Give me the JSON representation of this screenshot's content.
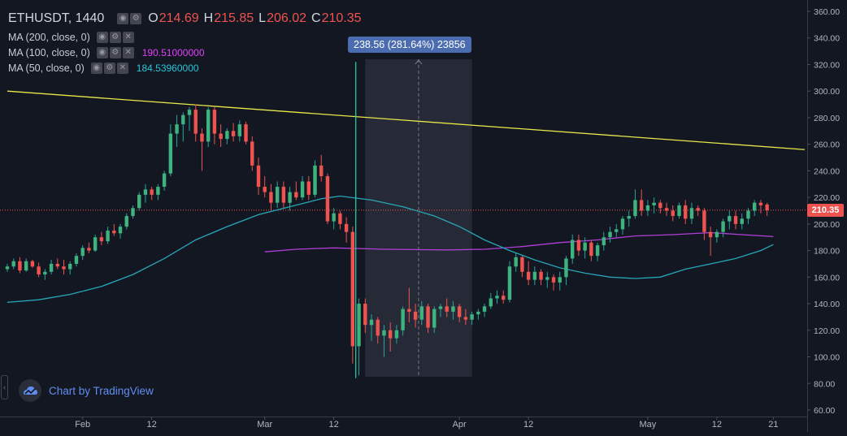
{
  "legend": {
    "symbol": "ETHUSDT, 1440",
    "ohlc": [
      {
        "k": "O",
        "v": "214.69"
      },
      {
        "k": "H",
        "v": "215.85"
      },
      {
        "k": "L",
        "v": "206.02"
      },
      {
        "k": "C",
        "v": "210.35"
      }
    ],
    "ma200": {
      "label": "MA (200, close, 0)",
      "value": "",
      "color": "#e040fb"
    },
    "ma100": {
      "label": "MA (100, close, 0)",
      "value": "190.51000000",
      "color": "#e040fb"
    },
    "ma50": {
      "label": "MA (50, close, 0)",
      "value": "184.53960000",
      "color": "#26c6da"
    }
  },
  "ruler": {
    "label": "238.56 (281.64%) 23856"
  },
  "last_price": "210.35",
  "branding": "Chart by TradingView",
  "colors": {
    "background": "#131722",
    "up": "#26a69a",
    "up_fill": "#4caf50",
    "down": "#ef5350",
    "ma50": "#26a6b8",
    "ma100": "#b03fd6",
    "trendline": "#e8e84a",
    "vertical_marker": "#26d4b0",
    "ruler_fill": "#2a2e39",
    "last_price_line": "#ef5350",
    "axis_text": "#b2b5be"
  },
  "chart_data": {
    "type": "candlestick",
    "y_ticks": [
      "360.00",
      "340.00",
      "320.00",
      "300.00",
      "280.00",
      "260.00",
      "240.00",
      "220.00",
      "200.00",
      "180.00",
      "160.00",
      "140.00",
      "120.00",
      "100.00",
      "80.00",
      "60.00"
    ],
    "ylim": [
      60,
      360
    ],
    "x_labels": [
      {
        "label": "Feb",
        "day": 32
      },
      {
        "label": "12",
        "day": 43
      },
      {
        "label": "Mar",
        "day": 61
      },
      {
        "label": "12",
        "day": 72
      },
      {
        "label": "Apr",
        "day": 92
      },
      {
        "label": "12",
        "day": 103
      },
      {
        "label": "May",
        "day": 122
      },
      {
        "label": "12",
        "day": 133
      },
      {
        "label": "21",
        "day": 142
      }
    ],
    "x_range_days": [
      20,
      147
    ],
    "candles": [
      {
        "day": 20,
        "o": 166,
        "h": 170,
        "l": 164,
        "c": 168
      },
      {
        "day": 21,
        "o": 168,
        "h": 174,
        "l": 166,
        "c": 172
      },
      {
        "day": 22,
        "o": 172,
        "h": 175,
        "l": 163,
        "c": 165
      },
      {
        "day": 23,
        "o": 165,
        "h": 174,
        "l": 164,
        "c": 172
      },
      {
        "day": 24,
        "o": 172,
        "h": 173,
        "l": 167,
        "c": 168
      },
      {
        "day": 25,
        "o": 168,
        "h": 171,
        "l": 160,
        "c": 162
      },
      {
        "day": 26,
        "o": 162,
        "h": 166,
        "l": 158,
        "c": 164
      },
      {
        "day": 27,
        "o": 164,
        "h": 173,
        "l": 162,
        "c": 170
      },
      {
        "day": 28,
        "o": 170,
        "h": 174,
        "l": 166,
        "c": 168
      },
      {
        "day": 29,
        "o": 168,
        "h": 173,
        "l": 162,
        "c": 166
      },
      {
        "day": 30,
        "o": 166,
        "h": 172,
        "l": 162,
        "c": 170
      },
      {
        "day": 31,
        "o": 170,
        "h": 178,
        "l": 168,
        "c": 176
      },
      {
        "day": 32,
        "o": 176,
        "h": 184,
        "l": 173,
        "c": 182
      },
      {
        "day": 33,
        "o": 182,
        "h": 186,
        "l": 178,
        "c": 180
      },
      {
        "day": 34,
        "o": 180,
        "h": 192,
        "l": 179,
        "c": 190
      },
      {
        "day": 35,
        "o": 190,
        "h": 194,
        "l": 184,
        "c": 187
      },
      {
        "day": 36,
        "o": 187,
        "h": 198,
        "l": 185,
        "c": 195
      },
      {
        "day": 37,
        "o": 195,
        "h": 200,
        "l": 191,
        "c": 193
      },
      {
        "day": 38,
        "o": 193,
        "h": 200,
        "l": 189,
        "c": 198
      },
      {
        "day": 39,
        "o": 198,
        "h": 208,
        "l": 196,
        "c": 206
      },
      {
        "day": 40,
        "o": 206,
        "h": 214,
        "l": 204,
        "c": 212
      },
      {
        "day": 41,
        "o": 212,
        "h": 224,
        "l": 210,
        "c": 222
      },
      {
        "day": 42,
        "o": 222,
        "h": 230,
        "l": 216,
        "c": 226
      },
      {
        "day": 43,
        "o": 226,
        "h": 228,
        "l": 218,
        "c": 222
      },
      {
        "day": 44,
        "o": 222,
        "h": 230,
        "l": 218,
        "c": 228
      },
      {
        "day": 45,
        "o": 228,
        "h": 240,
        "l": 225,
        "c": 238
      },
      {
        "day": 46,
        "o": 238,
        "h": 275,
        "l": 236,
        "c": 268
      },
      {
        "day": 47,
        "o": 268,
        "h": 282,
        "l": 258,
        "c": 275
      },
      {
        "day": 48,
        "o": 275,
        "h": 284,
        "l": 262,
        "c": 282
      },
      {
        "day": 49,
        "o": 282,
        "h": 288,
        "l": 270,
        "c": 286
      },
      {
        "day": 50,
        "o": 286,
        "h": 290,
        "l": 262,
        "c": 268
      },
      {
        "day": 51,
        "o": 268,
        "h": 272,
        "l": 240,
        "c": 262
      },
      {
        "day": 52,
        "o": 262,
        "h": 288,
        "l": 258,
        "c": 286
      },
      {
        "day": 53,
        "o": 286,
        "h": 288,
        "l": 260,
        "c": 268
      },
      {
        "day": 54,
        "o": 268,
        "h": 275,
        "l": 258,
        "c": 264
      },
      {
        "day": 55,
        "o": 264,
        "h": 272,
        "l": 260,
        "c": 270
      },
      {
        "day": 56,
        "o": 270,
        "h": 276,
        "l": 262,
        "c": 266
      },
      {
        "day": 57,
        "o": 266,
        "h": 278,
        "l": 262,
        "c": 275
      },
      {
        "day": 58,
        "o": 275,
        "h": 277,
        "l": 260,
        "c": 262
      },
      {
        "day": 59,
        "o": 262,
        "h": 266,
        "l": 240,
        "c": 244
      },
      {
        "day": 60,
        "o": 244,
        "h": 250,
        "l": 222,
        "c": 228
      },
      {
        "day": 61,
        "o": 228,
        "h": 236,
        "l": 220,
        "c": 224
      },
      {
        "day": 62,
        "o": 224,
        "h": 230,
        "l": 210,
        "c": 216
      },
      {
        "day": 63,
        "o": 216,
        "h": 232,
        "l": 212,
        "c": 228
      },
      {
        "day": 64,
        "o": 228,
        "h": 232,
        "l": 212,
        "c": 216
      },
      {
        "day": 65,
        "o": 216,
        "h": 228,
        "l": 210,
        "c": 224
      },
      {
        "day": 66,
        "o": 224,
        "h": 232,
        "l": 218,
        "c": 220
      },
      {
        "day": 67,
        "o": 220,
        "h": 236,
        "l": 218,
        "c": 232
      },
      {
        "day": 68,
        "o": 232,
        "h": 236,
        "l": 218,
        "c": 222
      },
      {
        "day": 69,
        "o": 222,
        "h": 248,
        "l": 220,
        "c": 244
      },
      {
        "day": 70,
        "o": 244,
        "h": 252,
        "l": 232,
        "c": 236
      },
      {
        "day": 71,
        "o": 236,
        "h": 238,
        "l": 200,
        "c": 202
      },
      {
        "day": 72,
        "o": 202,
        "h": 212,
        "l": 196,
        "c": 208
      },
      {
        "day": 73,
        "o": 208,
        "h": 210,
        "l": 196,
        "c": 200
      },
      {
        "day": 74,
        "o": 200,
        "h": 205,
        "l": 186,
        "c": 194
      },
      {
        "day": 75,
        "o": 194,
        "h": 198,
        "l": 95,
        "c": 108
      },
      {
        "day": 76,
        "o": 108,
        "h": 144,
        "l": 86,
        "c": 140
      },
      {
        "day": 77,
        "o": 140,
        "h": 144,
        "l": 118,
        "c": 124
      },
      {
        "day": 78,
        "o": 124,
        "h": 132,
        "l": 112,
        "c": 128
      },
      {
        "day": 79,
        "o": 128,
        "h": 130,
        "l": 110,
        "c": 116
      },
      {
        "day": 80,
        "o": 116,
        "h": 124,
        "l": 100,
        "c": 120
      },
      {
        "day": 81,
        "o": 120,
        "h": 126,
        "l": 104,
        "c": 114
      },
      {
        "day": 82,
        "o": 114,
        "h": 124,
        "l": 110,
        "c": 120
      },
      {
        "day": 83,
        "o": 120,
        "h": 138,
        "l": 116,
        "c": 136
      },
      {
        "day": 84,
        "o": 136,
        "h": 152,
        "l": 126,
        "c": 134
      },
      {
        "day": 85,
        "o": 134,
        "h": 140,
        "l": 122,
        "c": 128
      },
      {
        "day": 86,
        "o": 128,
        "h": 142,
        "l": 124,
        "c": 138
      },
      {
        "day": 87,
        "o": 138,
        "h": 140,
        "l": 118,
        "c": 122
      },
      {
        "day": 88,
        "o": 122,
        "h": 138,
        "l": 118,
        "c": 136
      },
      {
        "day": 89,
        "o": 136,
        "h": 140,
        "l": 130,
        "c": 138
      },
      {
        "day": 90,
        "o": 138,
        "h": 144,
        "l": 130,
        "c": 134
      },
      {
        "day": 91,
        "o": 134,
        "h": 142,
        "l": 128,
        "c": 138
      },
      {
        "day": 92,
        "o": 138,
        "h": 140,
        "l": 126,
        "c": 130
      },
      {
        "day": 93,
        "o": 130,
        "h": 136,
        "l": 124,
        "c": 128
      },
      {
        "day": 94,
        "o": 128,
        "h": 134,
        "l": 124,
        "c": 132
      },
      {
        "day": 95,
        "o": 132,
        "h": 136,
        "l": 128,
        "c": 134
      },
      {
        "day": 96,
        "o": 134,
        "h": 140,
        "l": 130,
        "c": 138
      },
      {
        "day": 97,
        "o": 138,
        "h": 148,
        "l": 136,
        "c": 144
      },
      {
        "day": 98,
        "o": 144,
        "h": 150,
        "l": 140,
        "c": 146
      },
      {
        "day": 99,
        "o": 146,
        "h": 150,
        "l": 140,
        "c": 143
      },
      {
        "day": 100,
        "o": 143,
        "h": 172,
        "l": 141,
        "c": 168
      },
      {
        "day": 101,
        "o": 168,
        "h": 178,
        "l": 164,
        "c": 175
      },
      {
        "day": 102,
        "o": 175,
        "h": 176,
        "l": 160,
        "c": 164
      },
      {
        "day": 103,
        "o": 164,
        "h": 172,
        "l": 154,
        "c": 158
      },
      {
        "day": 104,
        "o": 158,
        "h": 168,
        "l": 154,
        "c": 164
      },
      {
        "day": 105,
        "o": 164,
        "h": 166,
        "l": 154,
        "c": 158
      },
      {
        "day": 106,
        "o": 158,
        "h": 164,
        "l": 152,
        "c": 160
      },
      {
        "day": 107,
        "o": 160,
        "h": 162,
        "l": 150,
        "c": 156
      },
      {
        "day": 108,
        "o": 156,
        "h": 164,
        "l": 150,
        "c": 160
      },
      {
        "day": 109,
        "o": 160,
        "h": 176,
        "l": 154,
        "c": 174
      },
      {
        "day": 110,
        "o": 174,
        "h": 192,
        "l": 170,
        "c": 188
      },
      {
        "day": 111,
        "o": 188,
        "h": 192,
        "l": 176,
        "c": 180
      },
      {
        "day": 112,
        "o": 180,
        "h": 190,
        "l": 174,
        "c": 186
      },
      {
        "day": 113,
        "o": 186,
        "h": 188,
        "l": 172,
        "c": 176
      },
      {
        "day": 114,
        "o": 176,
        "h": 186,
        "l": 172,
        "c": 184
      },
      {
        "day": 115,
        "o": 184,
        "h": 194,
        "l": 180,
        "c": 190
      },
      {
        "day": 116,
        "o": 190,
        "h": 198,
        "l": 186,
        "c": 194
      },
      {
        "day": 117,
        "o": 194,
        "h": 200,
        "l": 190,
        "c": 196
      },
      {
        "day": 118,
        "o": 196,
        "h": 206,
        "l": 192,
        "c": 204
      },
      {
        "day": 119,
        "o": 204,
        "h": 210,
        "l": 198,
        "c": 206
      },
      {
        "day": 120,
        "o": 206,
        "h": 226,
        "l": 204,
        "c": 218
      },
      {
        "day": 121,
        "o": 218,
        "h": 226,
        "l": 206,
        "c": 210
      },
      {
        "day": 122,
        "o": 210,
        "h": 218,
        "l": 206,
        "c": 214
      },
      {
        "day": 123,
        "o": 214,
        "h": 220,
        "l": 208,
        "c": 216
      },
      {
        "day": 124,
        "o": 216,
        "h": 218,
        "l": 208,
        "c": 212
      },
      {
        "day": 125,
        "o": 212,
        "h": 216,
        "l": 206,
        "c": 210
      },
      {
        "day": 126,
        "o": 210,
        "h": 214,
        "l": 202,
        "c": 206
      },
      {
        "day": 127,
        "o": 206,
        "h": 216,
        "l": 204,
        "c": 214
      },
      {
        "day": 128,
        "o": 214,
        "h": 218,
        "l": 200,
        "c": 204
      },
      {
        "day": 129,
        "o": 204,
        "h": 216,
        "l": 200,
        "c": 212
      },
      {
        "day": 130,
        "o": 212,
        "h": 214,
        "l": 206,
        "c": 210
      },
      {
        "day": 131,
        "o": 210,
        "h": 212,
        "l": 188,
        "c": 194
      },
      {
        "day": 132,
        "o": 194,
        "h": 198,
        "l": 176,
        "c": 190
      },
      {
        "day": 133,
        "o": 190,
        "h": 196,
        "l": 186,
        "c": 194
      },
      {
        "day": 134,
        "o": 194,
        "h": 204,
        "l": 190,
        "c": 202
      },
      {
        "day": 135,
        "o": 202,
        "h": 210,
        "l": 196,
        "c": 206
      },
      {
        "day": 136,
        "o": 206,
        "h": 210,
        "l": 196,
        "c": 200
      },
      {
        "day": 137,
        "o": 200,
        "h": 208,
        "l": 196,
        "c": 204
      },
      {
        "day": 138,
        "o": 204,
        "h": 212,
        "l": 200,
        "c": 210
      },
      {
        "day": 139,
        "o": 210,
        "h": 218,
        "l": 206,
        "c": 216
      },
      {
        "day": 140,
        "o": 216,
        "h": 218,
        "l": 208,
        "c": 214
      },
      {
        "day": 141,
        "o": 214.69,
        "h": 215.85,
        "l": 206.02,
        "c": 210.35
      }
    ],
    "ma50": [
      {
        "day": 20,
        "v": 141
      },
      {
        "day": 25,
        "v": 143
      },
      {
        "day": 30,
        "v": 147
      },
      {
        "day": 35,
        "v": 153
      },
      {
        "day": 40,
        "v": 162
      },
      {
        "day": 45,
        "v": 174
      },
      {
        "day": 50,
        "v": 188
      },
      {
        "day": 55,
        "v": 198
      },
      {
        "day": 60,
        "v": 207
      },
      {
        "day": 65,
        "v": 213
      },
      {
        "day": 70,
        "v": 219
      },
      {
        "day": 73,
        "v": 221
      },
      {
        "day": 78,
        "v": 218
      },
      {
        "day": 83,
        "v": 213
      },
      {
        "day": 88,
        "v": 206
      },
      {
        "day": 92,
        "v": 198
      },
      {
        "day": 96,
        "v": 188
      },
      {
        "day": 100,
        "v": 180
      },
      {
        "day": 104,
        "v": 173
      },
      {
        "day": 108,
        "v": 167
      },
      {
        "day": 112,
        "v": 163
      },
      {
        "day": 116,
        "v": 160
      },
      {
        "day": 120,
        "v": 159
      },
      {
        "day": 124,
        "v": 160
      },
      {
        "day": 128,
        "v": 166
      },
      {
        "day": 132,
        "v": 170
      },
      {
        "day": 136,
        "v": 174
      },
      {
        "day": 140,
        "v": 180
      },
      {
        "day": 142,
        "v": 184.54
      }
    ],
    "ma100": [
      {
        "day": 61,
        "v": 179
      },
      {
        "day": 66,
        "v": 181
      },
      {
        "day": 72,
        "v": 182
      },
      {
        "day": 80,
        "v": 181
      },
      {
        "day": 90,
        "v": 180.5
      },
      {
        "day": 96,
        "v": 181
      },
      {
        "day": 102,
        "v": 183
      },
      {
        "day": 108,
        "v": 186
      },
      {
        "day": 114,
        "v": 188
      },
      {
        "day": 120,
        "v": 191
      },
      {
        "day": 126,
        "v": 192
      },
      {
        "day": 132,
        "v": 193.5
      },
      {
        "day": 137,
        "v": 192
      },
      {
        "day": 142,
        "v": 190.51
      }
    ],
    "trendline": [
      {
        "day": 20,
        "v": 300
      },
      {
        "day": 147,
        "v": 256
      }
    ],
    "vertical_marker_day": 75.5,
    "ruler": {
      "day_start": 77,
      "day_end": 94,
      "v_top": 324,
      "v_bottom": 85
    },
    "last_price_line": 210.35
  }
}
